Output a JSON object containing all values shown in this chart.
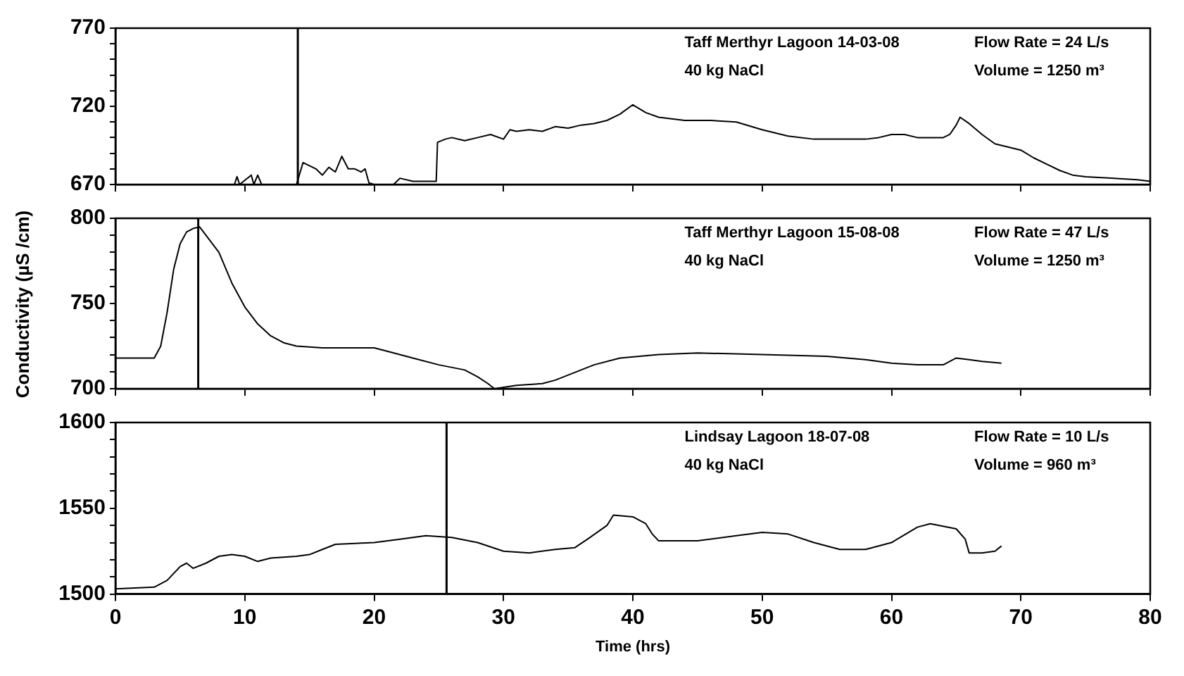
{
  "chart_data": [
    {
      "type": "line",
      "annotations": [
        "Taff Merthyr Lagoon 14-03-08",
        "40 kg NaCl",
        "Flow Rate = 24 L/s",
        "Volume = 1250 m³"
      ],
      "series": [
        {
          "color": "#000000",
          "x": [
            9.2,
            9.4,
            9.6,
            10.5,
            10.7,
            11,
            11.3,
            11.5,
            14,
            14.5,
            15,
            15.5,
            16,
            16.5,
            17,
            17.5,
            18,
            18.5,
            19,
            19.3,
            19.6,
            20,
            21.5,
            22,
            23,
            24,
            24.8,
            24.9,
            25.5,
            26,
            27,
            28,
            29,
            30,
            30.5,
            31,
            32,
            33,
            34,
            35,
            36,
            37,
            38,
            39,
            40,
            41,
            42,
            43,
            44,
            46,
            48,
            50,
            52,
            54,
            56,
            58,
            59,
            60,
            61,
            62,
            64,
            64.5,
            65,
            65.3,
            66,
            67,
            68,
            69,
            70,
            71,
            72,
            73,
            74,
            75,
            77,
            79,
            80
          ],
          "values": [
            670,
            675,
            670,
            676,
            670,
            676,
            670,
            670,
            670,
            684,
            682,
            680,
            676,
            681,
            678,
            688,
            680,
            680,
            678,
            680,
            671,
            670,
            670,
            674,
            672,
            672,
            672,
            697,
            699,
            700,
            698,
            700,
            702,
            699,
            705,
            704,
            705,
            704,
            707,
            706,
            708,
            709,
            711,
            715,
            721,
            716,
            713,
            712,
            711,
            711,
            710,
            705,
            701,
            699,
            699,
            699,
            700,
            702,
            702,
            700,
            700,
            702,
            708,
            713,
            709,
            702,
            696,
            694,
            692,
            687,
            683,
            679,
            676,
            675,
            674,
            673,
            672
          ]
        }
      ],
      "xlim": [
        0,
        80
      ],
      "xticks": [
        0,
        10,
        20,
        30,
        40,
        50,
        60,
        70,
        80
      ],
      "ylim": [
        670,
        770
      ],
      "yticks": [
        670,
        {
          "value": 680,
          "label": null
        },
        {
          "value": 690,
          "label": null
        },
        {
          "value": 700,
          "label": null
        },
        {
          "value": 710,
          "label": null
        },
        720,
        {
          "value": 730,
          "label": null
        },
        {
          "value": 740,
          "label": null
        },
        {
          "value": 750,
          "label": null
        },
        {
          "value": 760,
          "label": null
        },
        770
      ],
      "ref_lines": [
        {
          "axis": "x",
          "value": 14.1,
          "color": "#000000"
        }
      ],
      "tick_labels": "y",
      "grid": false,
      "legend": false,
      "marker": "none",
      "line_style": "solid"
    },
    {
      "type": "line",
      "ylabel": "Conductivity (µS /cm)",
      "annotations": [
        "Taff Merthyr Lagoon 15-08-08",
        "40 kg NaCl",
        "Flow Rate = 47 L/s",
        "Volume = 1250 m³"
      ],
      "series": [
        {
          "color": "#000000",
          "x": [
            0,
            3,
            3.5,
            4,
            4.5,
            5,
            5.5,
            6,
            6.5,
            7,
            8,
            9,
            10,
            11,
            12,
            13,
            14,
            16,
            20,
            21,
            23,
            25,
            27,
            28,
            28.8,
            29.3,
            31,
            33,
            34,
            35,
            36,
            37,
            39,
            42,
            45,
            50,
            55,
            58,
            60,
            62,
            64,
            65,
            66,
            67,
            68.5
          ],
          "values": [
            718,
            718,
            725,
            745,
            770,
            785,
            792,
            794,
            795,
            790,
            780,
            762,
            748,
            738,
            731,
            727,
            725,
            724,
            724,
            722,
            718,
            714,
            711,
            707,
            703,
            700,
            702,
            703,
            705,
            708,
            711,
            714,
            718,
            720,
            721,
            720,
            719,
            717,
            715,
            714,
            714,
            718,
            717,
            716,
            715
          ]
        }
      ],
      "xlim": [
        0,
        80
      ],
      "xticks": [
        0,
        10,
        20,
        30,
        40,
        50,
        60,
        70,
        80
      ],
      "ylim": [
        700,
        800
      ],
      "yticks": [
        700,
        {
          "value": 710,
          "label": null
        },
        {
          "value": 720,
          "label": null
        },
        {
          "value": 730,
          "label": null
        },
        {
          "value": 740,
          "label": null
        },
        750,
        {
          "value": 760,
          "label": null
        },
        {
          "value": 770,
          "label": null
        },
        {
          "value": 780,
          "label": null
        },
        {
          "value": 790,
          "label": null
        },
        800
      ],
      "ref_lines": [
        {
          "axis": "x",
          "value": 6.4,
          "color": "#000000"
        }
      ],
      "tick_labels": "y",
      "grid": false,
      "legend": false,
      "marker": "none",
      "line_style": "solid"
    },
    {
      "type": "line",
      "xlabel": "Time (hrs)",
      "annotations": [
        "Lindsay Lagoon 18-07-08",
        "40 kg NaCl",
        "Flow Rate = 10 L/s",
        "Volume = 960 m³"
      ],
      "series": [
        {
          "color": "#000000",
          "x": [
            0,
            3,
            4,
            5,
            5.5,
            6,
            7,
            8,
            9,
            10,
            11,
            12,
            14,
            15,
            16,
            17,
            20,
            22,
            24,
            26,
            28,
            30,
            32,
            34,
            35.5,
            36.5,
            38,
            38.5,
            40,
            41,
            41.5,
            42,
            45,
            48,
            50,
            52,
            54,
            56,
            58,
            60,
            62,
            63,
            65,
            65.7,
            66,
            67,
            68,
            68.5
          ],
          "values": [
            1503,
            1504,
            1508,
            1516,
            1518,
            1515,
            1518,
            1522,
            1523,
            1522,
            1519,
            1521,
            1522,
            1523,
            1526,
            1529,
            1530,
            1532,
            1534,
            1533,
            1530,
            1525,
            1524,
            1526,
            1527,
            1532,
            1540,
            1546,
            1545,
            1541,
            1535,
            1531,
            1531,
            1534,
            1536,
            1535,
            1530,
            1526,
            1526,
            1530,
            1539,
            1541,
            1538,
            1532,
            1524,
            1524,
            1525,
            1528
          ]
        }
      ],
      "xlim": [
        0,
        80
      ],
      "xticks": [
        0,
        10,
        20,
        30,
        40,
        50,
        60,
        70,
        80
      ],
      "ylim": [
        1500,
        1600
      ],
      "yticks": [
        1500,
        {
          "value": 1510,
          "label": null
        },
        {
          "value": 1520,
          "label": null
        },
        {
          "value": 1530,
          "label": null
        },
        {
          "value": 1540,
          "label": null
        },
        1550,
        {
          "value": 1560,
          "label": null
        },
        {
          "value": 1570,
          "label": null
        },
        {
          "value": 1580,
          "label": null
        },
        {
          "value": 1590,
          "label": null
        },
        1600
      ],
      "ref_lines": [
        {
          "axis": "x",
          "value": 25.6,
          "color": "#000000"
        }
      ],
      "grid": false,
      "legend": false,
      "marker": "none",
      "line_style": "solid"
    }
  ]
}
